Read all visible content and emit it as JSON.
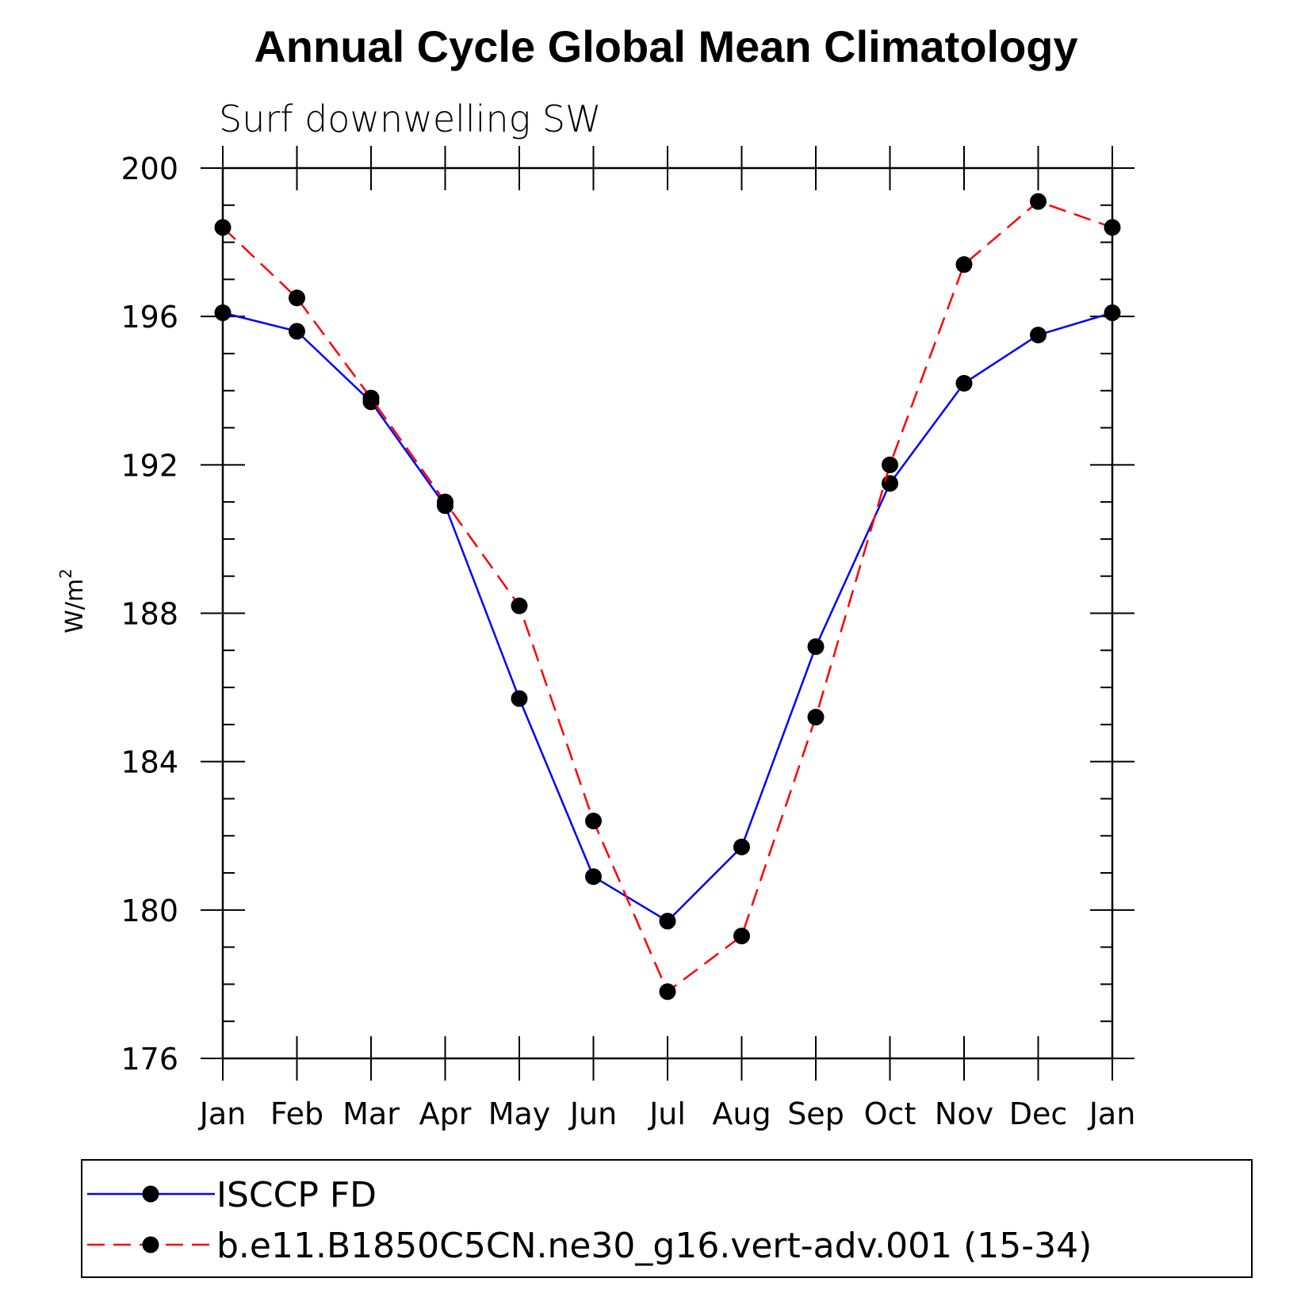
{
  "chart_data": {
    "type": "line",
    "title": "Annual Cycle Global Mean Climatology",
    "subtitle": "Surf downwelling SW",
    "xlabel": "",
    "ylabel": "W/m",
    "ylabel_superscript": "2",
    "categories": [
      "Jan",
      "Feb",
      "Mar",
      "Apr",
      "May",
      "Jun",
      "Jul",
      "Aug",
      "Sep",
      "Oct",
      "Nov",
      "Dec",
      "Jan"
    ],
    "ylim": [
      176,
      200
    ],
    "yticks": [
      176,
      180,
      184,
      188,
      192,
      196,
      200
    ],
    "yticks_minor_step": 1,
    "grid": false,
    "legend_position": "bottom",
    "series": [
      {
        "name": "ISCCP FD",
        "color": "#0000ff",
        "dash": "solid",
        "marker": "filled-circle",
        "values": [
          196.1,
          195.6,
          193.7,
          190.9,
          185.7,
          180.9,
          179.7,
          181.7,
          187.1,
          191.5,
          194.2,
          195.5,
          196.1
        ]
      },
      {
        "name": "b.e11.B1850C5CN.ne30_g16.vert-adv.001 (15-34)",
        "color": "#ff0000",
        "dash": "dashed",
        "marker": "filled-circle",
        "values": [
          198.4,
          196.5,
          193.8,
          191.0,
          188.2,
          182.4,
          177.8,
          179.3,
          185.2,
          192.0,
          197.4,
          199.1,
          198.4
        ]
      }
    ]
  }
}
